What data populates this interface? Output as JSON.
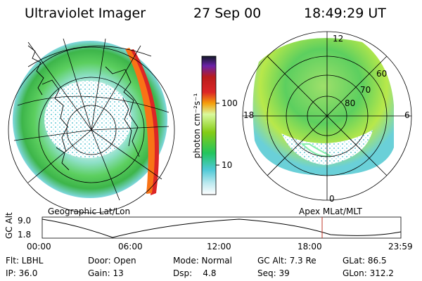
{
  "header": {
    "instrument": "Ultraviolet Imager",
    "date": "27 Sep 00",
    "time": "18:49:29 UT"
  },
  "left_panel": {
    "caption": "Geographic Lat/Lon"
  },
  "right_panel": {
    "caption": "Apex MLat/MLT",
    "mlt_labels": [
      "12",
      "18",
      "6",
      "0"
    ],
    "lat_labels": [
      "60",
      "70",
      "80"
    ]
  },
  "colorbar": {
    "unit_label": "photon cm⁻²s⁻¹",
    "tick_labels": [
      "100",
      "10"
    ]
  },
  "orbit_plot": {
    "ylabel": "GC Alt",
    "y_ticks": [
      "9.0",
      "1.8"
    ],
    "x_ticks": [
      "00:00",
      "06:00",
      "12:00",
      "18:00",
      "23:59"
    ],
    "marker_time": "18:49",
    "marker_color": "#c0392b"
  },
  "info": {
    "row1": {
      "flt": "Flt: LBHL",
      "door": "Door: Open",
      "mode": "Mode: Normal",
      "gcalt": "GC Alt: 7.3 Re",
      "glat": "GLat: 86.5"
    },
    "row2": {
      "ip": "IP: 36.0",
      "gain": "Gain: 13",
      "dsp": "Dsp:    4.8",
      "seq": "Seq: 39",
      "glon": "GLon: 312.2"
    }
  },
  "colors": {
    "aurora_low": "#22c55e",
    "aurora_mid": "#a3e635",
    "aurora_high": "#dc2626",
    "background_speckle": "#6ad0d8"
  }
}
